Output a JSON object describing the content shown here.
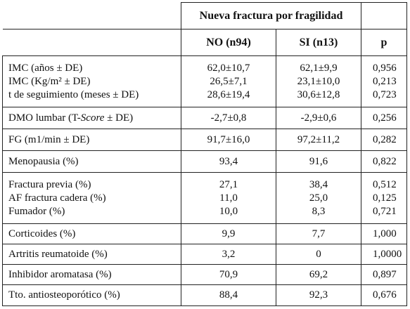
{
  "header": {
    "group_title": "Nueva fractura por fragilidad",
    "col_no": "NO (n94)",
    "col_si": "SI (n13)",
    "col_p": "p"
  },
  "rows": [
    {
      "labels": [
        "IMC (años ± DE)",
        "IMC (Kg/m² ± DE)",
        "t de seguimiento (meses ± DE)"
      ],
      "no": [
        "62,0±10,7",
        "26,5±7,1",
        "28,6±19,4"
      ],
      "si": [
        "62,1±9,9",
        "23,1±10,0",
        "30,6±12,8"
      ],
      "p": [
        "0,956",
        "0,213",
        "0,723"
      ]
    },
    {
      "label_pre": "DMO lumbar (T-",
      "label_ital": "Score",
      "label_post": " ± DE)",
      "no": [
        "-2,7±0,8"
      ],
      "si": [
        "-2,9±0,6"
      ],
      "p": [
        "0,256"
      ]
    },
    {
      "labels": [
        "FG (m1/min ± DE)"
      ],
      "no": [
        "91,7±16,0"
      ],
      "si": [
        "97,2±11,2"
      ],
      "p": [
        "0,282"
      ]
    },
    {
      "labels": [
        "Menopausia (%)"
      ],
      "no": [
        "93,4"
      ],
      "si": [
        "91,6"
      ],
      "p": [
        "0,822"
      ]
    },
    {
      "labels": [
        "Fractura previa (%)",
        "AF fractura cadera (%)",
        "Fumador (%)"
      ],
      "no": [
        "27,1",
        "11,0",
        "10,0"
      ],
      "si": [
        "38,4",
        "25,0",
        "8,3"
      ],
      "p": [
        "0,512",
        "0,125",
        "0,721"
      ]
    },
    {
      "labels": [
        "Corticoides (%)"
      ],
      "no": [
        "9,9"
      ],
      "si": [
        "7,7"
      ],
      "p": [
        "1,000"
      ]
    },
    {
      "labels": [
        "Artritis reumatoide (%)"
      ],
      "no": [
        "3,2"
      ],
      "si": [
        "0"
      ],
      "p": [
        "1,0000"
      ]
    },
    {
      "labels": [
        "Inhibidor aromatasa (%)"
      ],
      "no": [
        "70,9"
      ],
      "si": [
        "69,2"
      ],
      "p": [
        "0,897"
      ]
    },
    {
      "labels": [
        "Tto. antiosteoporótico (%)"
      ],
      "no": [
        "88,4"
      ],
      "si": [
        "92,3"
      ],
      "p": [
        "0,676"
      ]
    }
  ]
}
